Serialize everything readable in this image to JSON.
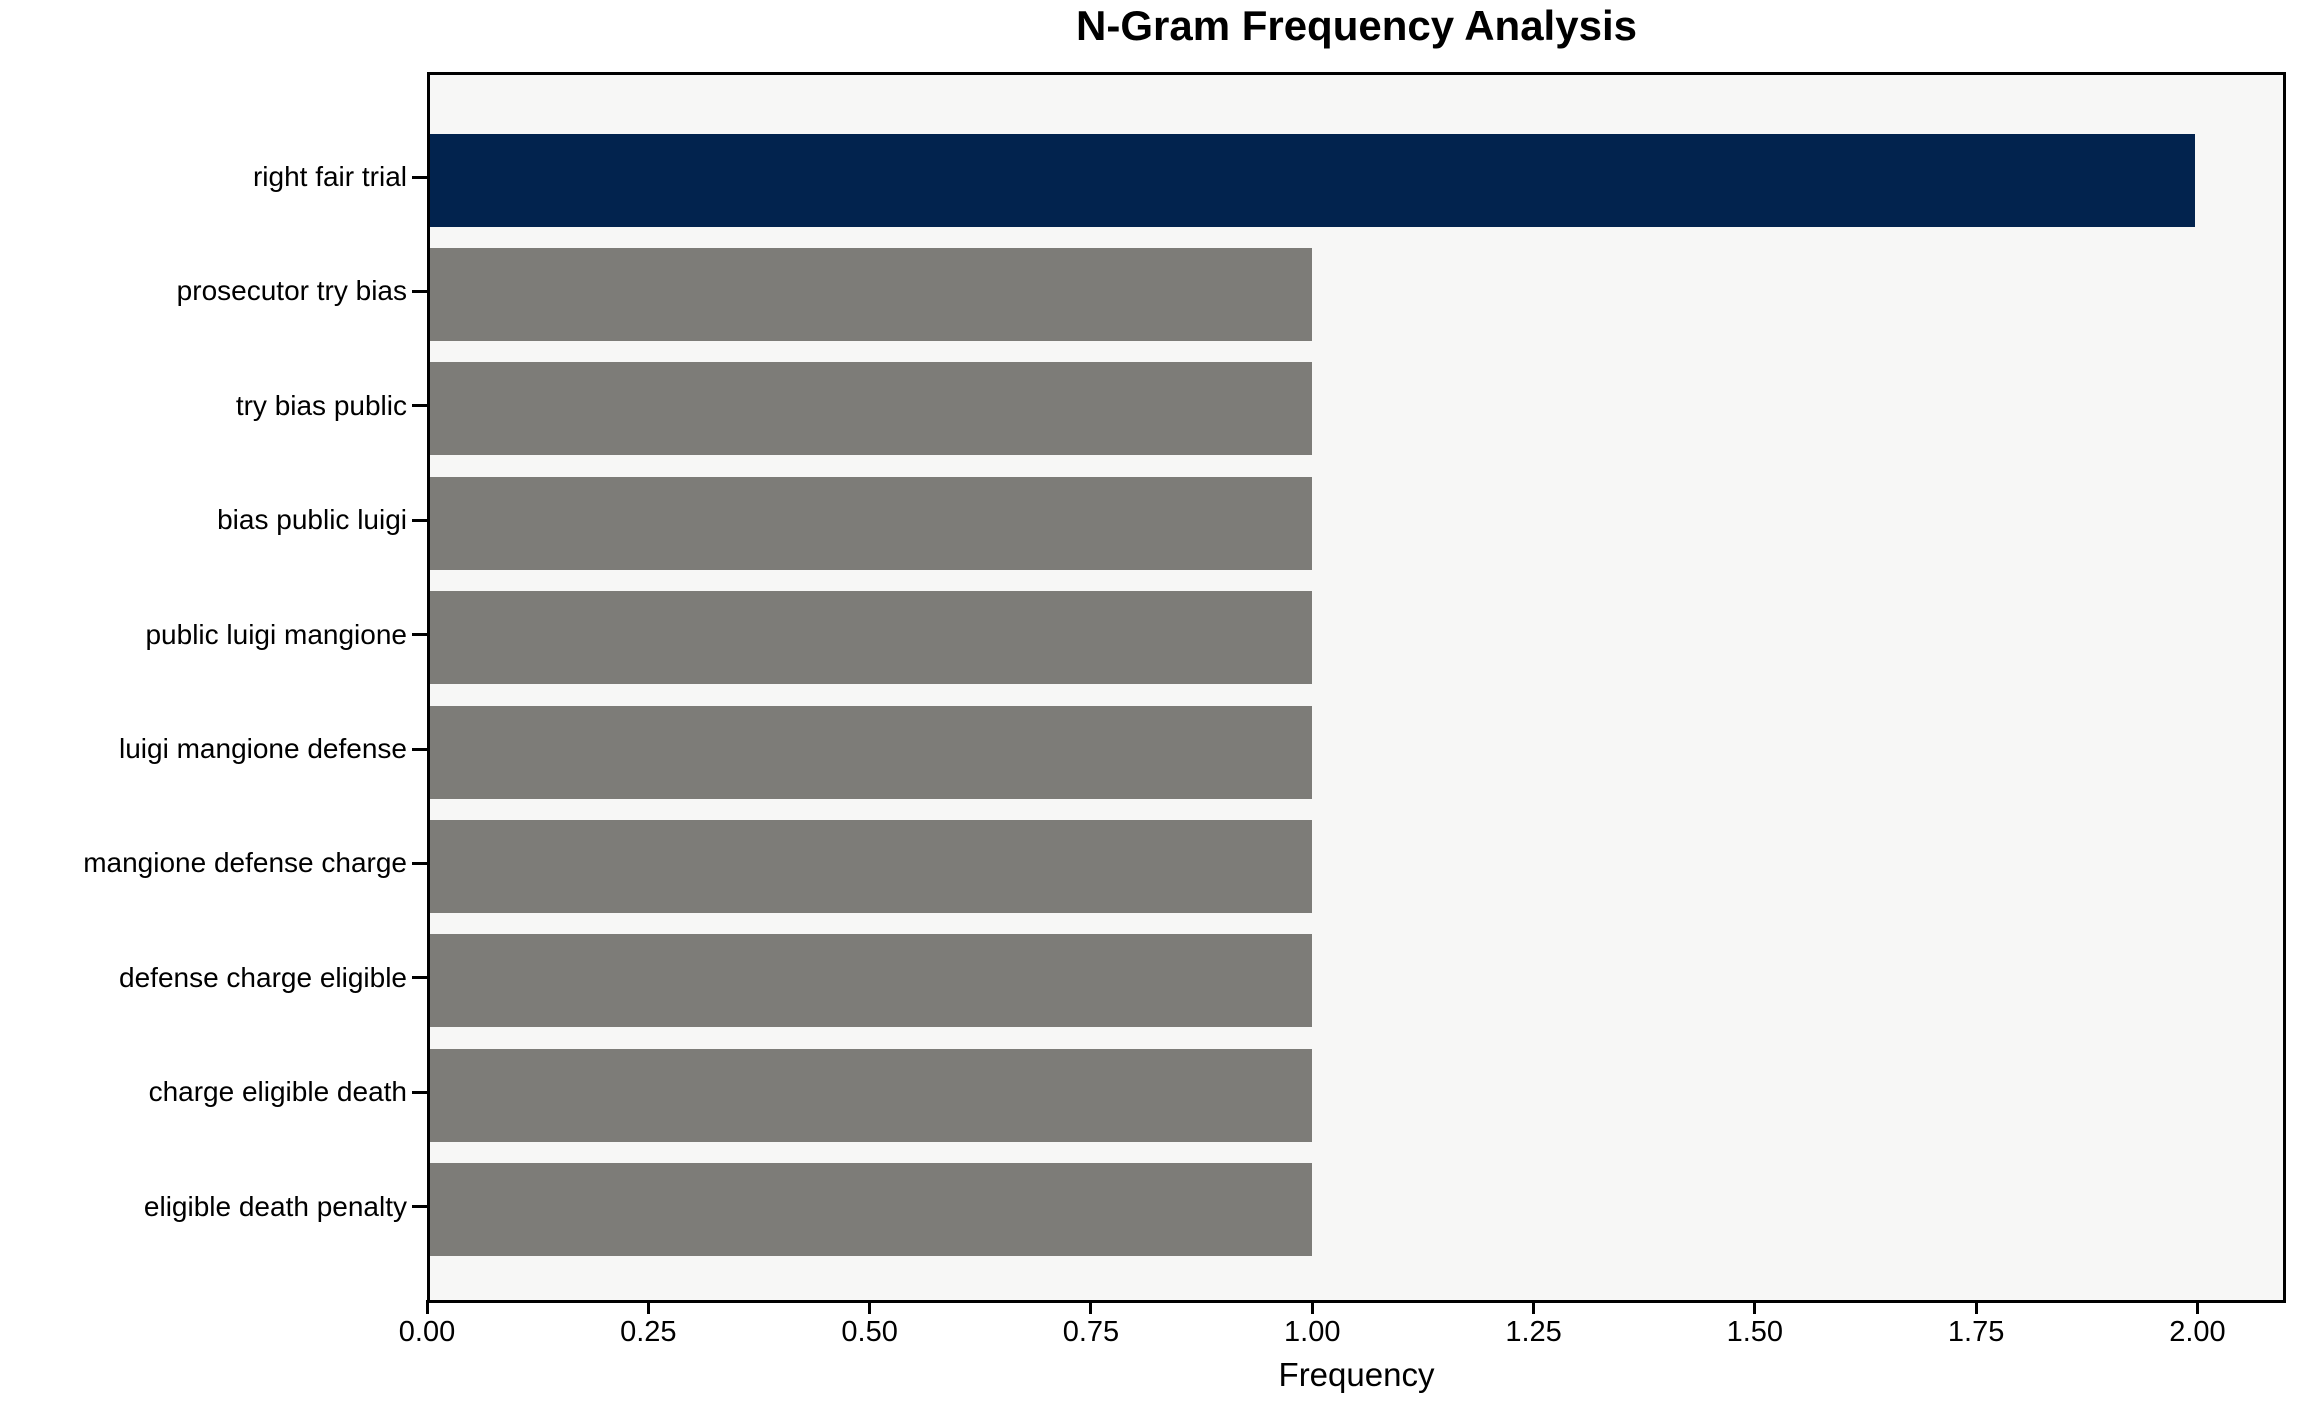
{
  "title": "N-Gram Frequency Analysis",
  "chart_data": {
    "type": "bar",
    "orientation": "horizontal",
    "title": "N-Gram Frequency Analysis",
    "xlabel": "Frequency",
    "ylabel": "",
    "categories": [
      "right fair trial",
      "prosecutor try bias",
      "try bias public",
      "bias public luigi",
      "public luigi mangione",
      "luigi mangione defense",
      "mangione defense charge",
      "defense charge eligible",
      "charge eligible death",
      "eligible death penalty"
    ],
    "values": [
      2,
      1,
      1,
      1,
      1,
      1,
      1,
      1,
      1,
      1
    ],
    "bar_colors": [
      "#02234e",
      "#7d7c78",
      "#7d7c78",
      "#7d7c78",
      "#7d7c78",
      "#7d7c78",
      "#7d7c78",
      "#7d7c78",
      "#7d7c78",
      "#7d7c78"
    ],
    "xlim": [
      0,
      2.1
    ],
    "xticks": [
      {
        "value": 0.0,
        "label": "0.00"
      },
      {
        "value": 0.25,
        "label": "0.25"
      },
      {
        "value": 0.5,
        "label": "0.50"
      },
      {
        "value": 0.75,
        "label": "0.75"
      },
      {
        "value": 1.0,
        "label": "1.00"
      },
      {
        "value": 1.25,
        "label": "1.25"
      },
      {
        "value": 1.5,
        "label": "1.50"
      },
      {
        "value": 1.75,
        "label": "1.75"
      },
      {
        "value": 2.0,
        "label": "2.00"
      }
    ],
    "grid": false,
    "legend": null,
    "colors": {
      "highlight_bar": "#02234e",
      "default_bar": "#7d7c78",
      "plot_background": "#f7f7f6",
      "figure_background": "#ffffff",
      "spine": "#000000",
      "text": "#000000"
    }
  }
}
